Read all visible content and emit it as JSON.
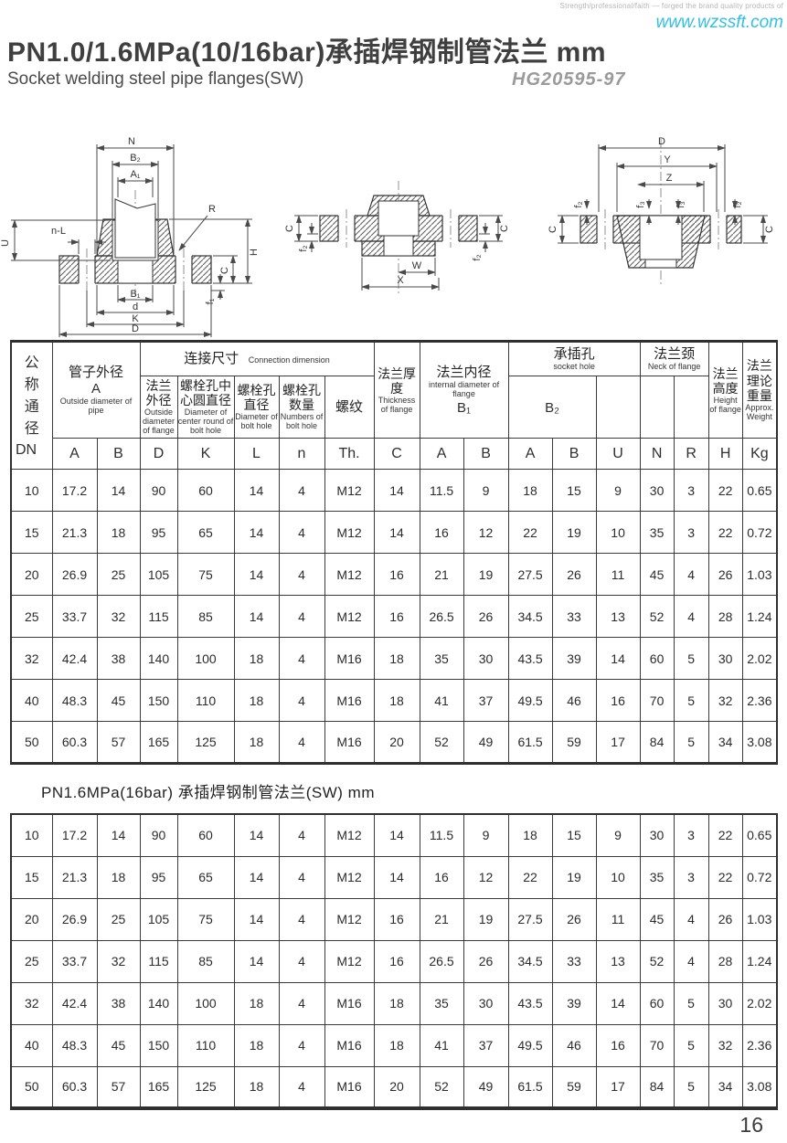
{
  "meta": {
    "tagline": "Strength/professional/faith — forged the brand quality products of",
    "website": "www.wzssft.com",
    "title": "PN1.0/1.6MPa(10/16bar)承插焊钢制管法兰 mm",
    "subtitle": "Socket welding steel pipe flanges(SW)",
    "standard": "HG20595-97",
    "section2_title": "PN1.6MPa(16bar) 承插焊钢制管法兰(SW)  mm",
    "page_number": "16"
  },
  "drawings": {
    "left": {
      "n": "N",
      "b2": "B₂",
      "a1": "A₁",
      "nl": "n-L",
      "r": "R",
      "u": "U",
      "h": "H",
      "c": "C",
      "f1": "f₁",
      "b1": "B₁",
      "d": "d",
      "k": "K",
      "dd": "D"
    },
    "middle": {
      "c_left": "C",
      "f2_left": "f₂",
      "w": "W",
      "x": "X",
      "c_right": "C",
      "f2_right": "f₂"
    },
    "right": {
      "d": "D",
      "y": "Y",
      "z": "Z",
      "f2_left": "f₂",
      "f3_a": "f₃",
      "f3_b": "f₃",
      "f2_right": "f₂",
      "c_left": "C",
      "c_right": "C"
    }
  },
  "table": {
    "header": {
      "dn_cn": "公称通径",
      "dn_code": "DN",
      "pipe_od_cn": "管子外径",
      "pipe_od_code": "A",
      "pipe_od_en": "Outside diameter of pipe",
      "conn_cn": "连接尺寸",
      "conn_en": "Connection dimension",
      "flange_od_cn": "法兰外径",
      "flange_od_en": "Outside diameter of flange",
      "bolt_circle_cn": "螺栓孔中心圆直径",
      "bolt_circle_en": "Diameter of center round of bolt hole",
      "bolt_hole_cn": "螺栓孔直径",
      "bolt_hole_en": "Diameter of bolt hole",
      "bolt_num_cn": "螺栓孔数量",
      "bolt_num_en": "Numbers of bolt hole",
      "thread_cn": "螺纹",
      "thickness_cn": "法兰厚度",
      "thickness_en": "Thickness of flange",
      "b1_cn": "法兰内径",
      "b1_en": "internal diameter of flange",
      "b1_code": "B₁",
      "socket_cn": "承插孔",
      "socket_en": "socket hole",
      "b2_code": "B₂",
      "neck_cn": "法兰颈",
      "neck_en": "Neck of flange",
      "height_cn": "法兰高度",
      "height_en": "Height of flange",
      "weight_cn": "法兰理论重量",
      "weight_en": "Approx. Weight",
      "letters": [
        "A",
        "B",
        "D",
        "K",
        "L",
        "n",
        "Th.",
        "C",
        "A",
        "B",
        "A",
        "B",
        "U",
        "N",
        "R",
        "H",
        "Kg"
      ]
    },
    "rows_pn10": [
      [
        "10",
        "17.2",
        "14",
        "90",
        "60",
        "14",
        "4",
        "M12",
        "14",
        "11.5",
        "9",
        "18",
        "15",
        "9",
        "30",
        "3",
        "22",
        "0.65"
      ],
      [
        "15",
        "21.3",
        "18",
        "95",
        "65",
        "14",
        "4",
        "M12",
        "14",
        "16",
        "12",
        "22",
        "19",
        "10",
        "35",
        "3",
        "22",
        "0.72"
      ],
      [
        "20",
        "26.9",
        "25",
        "105",
        "75",
        "14",
        "4",
        "M12",
        "16",
        "21",
        "19",
        "27.5",
        "26",
        "11",
        "45",
        "4",
        "26",
        "1.03"
      ],
      [
        "25",
        "33.7",
        "32",
        "115",
        "85",
        "14",
        "4",
        "M12",
        "16",
        "26.5",
        "26",
        "34.5",
        "33",
        "13",
        "52",
        "4",
        "28",
        "1.24"
      ],
      [
        "32",
        "42.4",
        "38",
        "140",
        "100",
        "18",
        "4",
        "M16",
        "18",
        "35",
        "30",
        "43.5",
        "39",
        "14",
        "60",
        "5",
        "30",
        "2.02"
      ],
      [
        "40",
        "48.3",
        "45",
        "150",
        "110",
        "18",
        "4",
        "M16",
        "18",
        "41",
        "37",
        "49.5",
        "46",
        "16",
        "70",
        "5",
        "32",
        "2.36"
      ],
      [
        "50",
        "60.3",
        "57",
        "165",
        "125",
        "18",
        "4",
        "M16",
        "20",
        "52",
        "49",
        "61.5",
        "59",
        "17",
        "84",
        "5",
        "34",
        "3.08"
      ]
    ],
    "rows_pn16": [
      [
        "10",
        "17.2",
        "14",
        "90",
        "60",
        "14",
        "4",
        "M12",
        "14",
        "11.5",
        "9",
        "18",
        "15",
        "9",
        "30",
        "3",
        "22",
        "0.65"
      ],
      [
        "15",
        "21.3",
        "18",
        "95",
        "65",
        "14",
        "4",
        "M12",
        "14",
        "16",
        "12",
        "22",
        "19",
        "10",
        "35",
        "3",
        "22",
        "0.72"
      ],
      [
        "20",
        "26.9",
        "25",
        "105",
        "75",
        "14",
        "4",
        "M12",
        "16",
        "21",
        "19",
        "27.5",
        "26",
        "11",
        "45",
        "4",
        "26",
        "1.03"
      ],
      [
        "25",
        "33.7",
        "32",
        "115",
        "85",
        "14",
        "4",
        "M12",
        "16",
        "26.5",
        "26",
        "34.5",
        "33",
        "13",
        "52",
        "4",
        "28",
        "1.24"
      ],
      [
        "32",
        "42.4",
        "38",
        "140",
        "100",
        "18",
        "4",
        "M16",
        "18",
        "35",
        "30",
        "43.5",
        "39",
        "14",
        "60",
        "5",
        "30",
        "2.02"
      ],
      [
        "40",
        "48.3",
        "45",
        "150",
        "110",
        "18",
        "4",
        "M16",
        "18",
        "41",
        "37",
        "49.5",
        "46",
        "16",
        "70",
        "5",
        "32",
        "2.36"
      ],
      [
        "50",
        "60.3",
        "57",
        "165",
        "125",
        "18",
        "4",
        "M16",
        "20",
        "52",
        "49",
        "61.5",
        "59",
        "17",
        "84",
        "5",
        "34",
        "3.08"
      ]
    ]
  }
}
